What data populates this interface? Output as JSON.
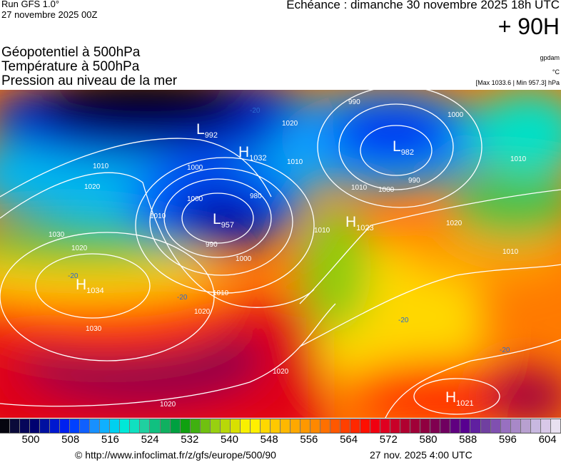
{
  "header": {
    "run": "Run GFS 1.0°",
    "run_date": "27 novembre 2025 00Z",
    "echeance": "Echéance : dimanche 30 novembre 2025 18h UTC",
    "lead": "+ 90H",
    "titles": [
      "Géopotentiel à 500hPa",
      "Température à 500hPa",
      "Pression au niveau de la mer"
    ],
    "units": [
      "gpdam",
      "°C",
      "[Max 1033.6 | Min 957.3] hPa"
    ]
  },
  "map": {
    "centers": [
      {
        "type": "L",
        "value": "992"
      },
      {
        "type": "H",
        "value": "1032"
      },
      {
        "type": "L",
        "value": "957"
      },
      {
        "type": "H",
        "value": "1023"
      },
      {
        "type": "L",
        "value": "982"
      },
      {
        "type": "H",
        "value": "1034"
      },
      {
        "type": "H",
        "value": "1021"
      }
    ],
    "isobar_labels": [
      "1010",
      "1020",
      "1010",
      "1000",
      "980",
      "990",
      "1000",
      "1010",
      "1020",
      "1030",
      "1020",
      "1020",
      "990",
      "1000",
      "1010",
      "1010",
      "1000",
      "990",
      "1020",
      "1010",
      "1020",
      "1010",
      "1030",
      "1020",
      "1000",
      "1010"
    ],
    "temp_labels": [
      "-20",
      "-20",
      "-20",
      "-20",
      "-20"
    ]
  },
  "colorbar": {
    "ticks": [
      "500",
      "508",
      "516",
      "524",
      "532",
      "540",
      "548",
      "556",
      "564",
      "572",
      "580",
      "588",
      "596",
      "604"
    ],
    "colors": [
      "#05050f",
      "#0a0a3a",
      "#06065a",
      "#000070",
      "#0010a0",
      "#0018d0",
      "#0020f0",
      "#0040ff",
      "#1060ff",
      "#1890ff",
      "#10b0ff",
      "#00d0f0",
      "#00e8d8",
      "#10e0c0",
      "#20d0a0",
      "#10c080",
      "#10b060",
      "#00a040",
      "#10a010",
      "#40b010",
      "#70c010",
      "#98d010",
      "#b8d808",
      "#d8e000",
      "#f8f000",
      "#fff000",
      "#ffd800",
      "#ffc800",
      "#ffb800",
      "#ffa800",
      "#ff9800",
      "#ff8800",
      "#ff7000",
      "#ff5800",
      "#ff4000",
      "#ff2800",
      "#ff1000",
      "#f00010",
      "#e00020",
      "#c80028",
      "#b00030",
      "#a00038",
      "#900040",
      "#800050",
      "#700060",
      "#600080",
      "#580090",
      "#6020a0",
      "#7040a0",
      "#8050b0",
      "#9870c0",
      "#a888c8",
      "#b8a0d0",
      "#c8b8e0",
      "#d8c8e8",
      "#e8e0f0"
    ]
  },
  "footer": {
    "url": "© http://www.infoclimat.fr/z/gfs/europe/500/90",
    "timestamp": "27 nov. 2025  4:00 UTC"
  }
}
